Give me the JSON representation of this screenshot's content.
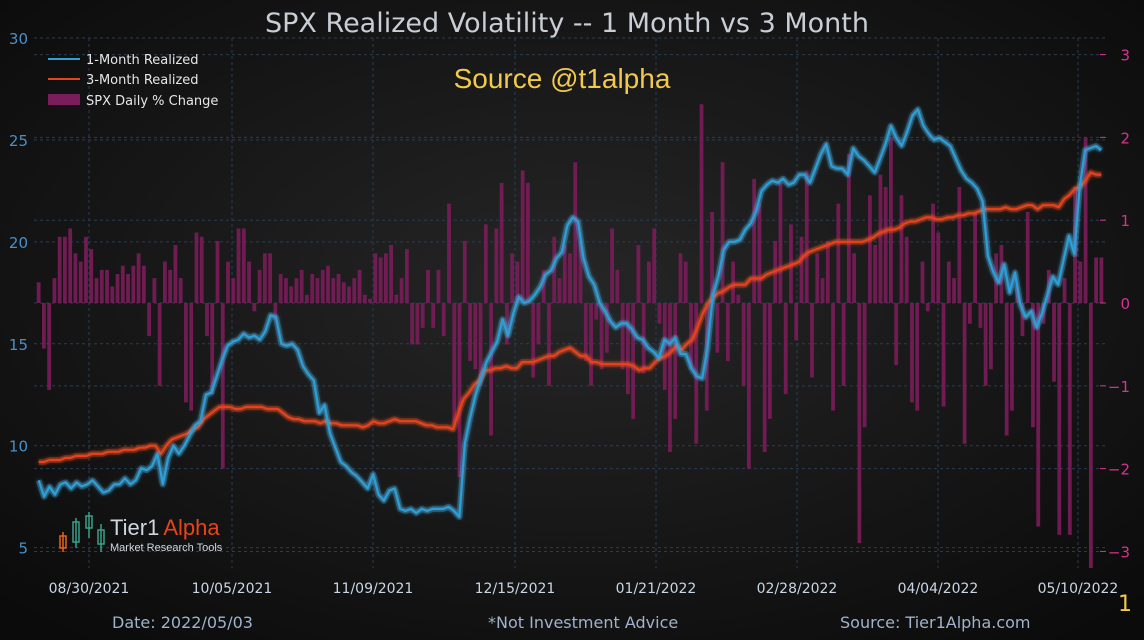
{
  "chart_data": {
    "type": "line+bar",
    "title": "SPX Realized Volatility -- 1 Month vs 3 Month",
    "watermark_source": "Source @t1alpha",
    "left_axis": {
      "ylim": [
        4,
        30
      ],
      "ticks": [
        5,
        10,
        15,
        20,
        25,
        30
      ]
    },
    "right_axis": {
      "ylim": [
        -3.2,
        3.2
      ],
      "ticks": [
        -3,
        -2,
        -1,
        0,
        1,
        2,
        3
      ]
    },
    "x_ticks": [
      "08/30/2021",
      "10/05/2021",
      "11/09/2021",
      "12/15/2021",
      "01/21/2022",
      "02/28/2022",
      "04/04/2022",
      "05/10/2022"
    ],
    "grid": true,
    "legend_position": "top-left",
    "colors": {
      "one_month": "#2f9fd6",
      "three_month": "#e8431b",
      "bars": "#7a1d5a",
      "title": "#c9ced6",
      "watermark": "#f2c94c",
      "left_ticks": "#4a90c8",
      "right_ticks": "#d6338f"
    },
    "series": [
      {
        "name": "1-Month Realized",
        "axis": "left",
        "values": [
          8.3,
          7.5,
          8.0,
          7.6,
          8.1,
          8.2,
          7.9,
          8.2,
          8.0,
          8.1,
          8.3,
          8.0,
          7.7,
          7.8,
          8.1,
          8.1,
          8.4,
          8.1,
          8.3,
          8.9,
          8.8,
          9.0,
          9.6,
          8.1,
          9.4,
          10.0,
          9.6,
          10.0,
          10.5,
          11.0,
          11.2,
          12.5,
          12.6,
          13.4,
          14.2,
          14.9,
          15.1,
          15.2,
          15.5,
          15.3,
          15.4,
          15.2,
          15.6,
          16.4,
          16.3,
          15.0,
          14.9,
          15.0,
          14.7,
          13.9,
          13.5,
          13.2,
          11.6,
          12.0,
          10.6,
          9.9,
          9.2,
          9.0,
          8.7,
          8.5,
          8.2,
          7.9,
          8.6,
          7.6,
          7.3,
          7.8,
          7.9,
          6.9,
          6.8,
          6.9,
          6.7,
          6.9,
          6.8,
          6.9,
          6.9,
          6.9,
          7.0,
          6.8,
          6.5,
          10.1,
          11.4,
          12.5,
          13.3,
          14.1,
          14.6,
          15.1,
          16.2,
          15.4,
          16.5,
          17.3,
          17.0,
          17.1,
          17.4,
          17.8,
          18.4,
          18.6,
          19.2,
          19.5,
          20.8,
          21.2,
          21.0,
          19.2,
          18.3,
          17.9,
          17.0,
          16.6,
          16.1,
          15.8,
          16.0,
          16.0,
          15.7,
          15.3,
          15.2,
          14.8,
          14.6,
          14.3,
          15.2,
          15.0,
          15.3,
          14.5,
          14.5,
          13.8,
          13.4,
          13.3,
          14.8,
          17.4,
          18.3,
          19.6,
          20.0,
          20.0,
          20.1,
          20.6,
          20.9,
          21.5,
          22.5,
          22.8,
          23.0,
          22.9,
          23.1,
          22.8,
          22.9,
          23.3,
          23.3,
          22.9,
          23.6,
          24.3,
          24.8,
          23.7,
          23.6,
          23.6,
          23.3,
          24.6,
          24.2,
          24.0,
          23.7,
          23.4,
          24.1,
          24.8,
          25.7,
          25.1,
          24.7,
          25.4,
          26.2,
          26.5,
          25.7,
          25.3,
          25.0,
          25.1,
          24.9,
          24.7,
          24.1,
          23.5,
          23.1,
          22.9,
          22.6,
          22.0,
          19.3,
          18.5,
          18.0,
          18.9,
          17.5,
          18.5,
          16.9,
          16.3,
          16.6,
          15.8,
          16.5,
          17.4,
          18.3,
          17.9,
          19.1,
          20.3,
          19.4,
          22.7,
          24.5,
          24.6,
          24.7,
          24.5
        ]
      },
      {
        "name": "3-Month Realized",
        "axis": "left",
        "values": [
          9.2,
          9.2,
          9.3,
          9.3,
          9.3,
          9.4,
          9.4,
          9.5,
          9.5,
          9.5,
          9.6,
          9.6,
          9.6,
          9.7,
          9.7,
          9.7,
          9.8,
          9.8,
          9.8,
          9.9,
          9.9,
          10.0,
          10.0,
          9.6,
          10.0,
          10.3,
          10.4,
          10.5,
          10.6,
          10.8,
          10.9,
          11.3,
          11.5,
          11.7,
          11.9,
          11.9,
          11.9,
          11.8,
          11.8,
          11.9,
          11.9,
          11.9,
          11.9,
          11.8,
          11.8,
          11.8,
          11.6,
          11.4,
          11.3,
          11.3,
          11.2,
          11.2,
          11.2,
          11.1,
          11.2,
          11.1,
          11.1,
          11.0,
          11.0,
          11.0,
          11.0,
          10.9,
          11.0,
          11.2,
          11.1,
          11.1,
          11.2,
          11.3,
          11.2,
          11.2,
          11.2,
          11.2,
          11.1,
          11.0,
          11.0,
          10.9,
          10.9,
          10.9,
          10.8,
          11.6,
          12.3,
          12.6,
          13.0,
          13.2,
          13.7,
          13.7,
          13.8,
          13.8,
          13.9,
          13.8,
          13.8,
          14.1,
          14.1,
          14.1,
          14.2,
          14.3,
          14.4,
          14.4,
          14.6,
          14.7,
          14.8,
          14.6,
          14.4,
          14.4,
          14.1,
          14.1,
          14.0,
          14.0,
          14.0,
          14.0,
          14.0,
          14.0,
          13.9,
          13.7,
          13.8,
          13.8,
          14.1,
          14.3,
          14.4,
          14.6,
          14.9,
          14.7,
          15.0,
          15.2,
          15.8,
          16.5,
          17.0,
          17.3,
          17.5,
          17.6,
          17.8,
          17.9,
          17.9,
          17.9,
          18.2,
          18.2,
          18.2,
          18.4,
          18.5,
          18.6,
          18.7,
          18.8,
          18.9,
          19.0,
          19.3,
          19.5,
          19.6,
          19.7,
          19.8,
          19.9,
          20.0,
          20.0,
          20.0,
          20.0,
          20.0,
          20.0,
          20.1,
          20.2,
          20.4,
          20.5,
          20.6,
          20.6,
          20.7,
          20.9,
          21.0,
          21.0,
          21.1,
          21.2,
          21.2,
          21.1,
          21.1,
          21.2,
          21.2,
          21.3,
          21.3,
          21.4,
          21.4,
          21.5,
          21.6,
          21.6,
          21.6,
          21.6,
          21.7,
          21.6,
          21.6,
          21.7,
          21.8,
          21.8,
          21.6,
          21.8,
          21.8,
          21.8,
          21.7,
          22.1,
          22.3,
          22.6,
          22.7,
          23.0,
          23.4,
          23.3,
          23.3
        ]
      },
      {
        "name": "SPX Daily % Change",
        "axis": "right",
        "type": "bar",
        "values": [
          0.25,
          -0.55,
          -1.05,
          0.3,
          0.8,
          0.8,
          0.9,
          0.6,
          0.5,
          0.8,
          0.65,
          0.3,
          0.4,
          0.4,
          0.2,
          0.35,
          0.45,
          0.35,
          0.45,
          0.6,
          0.45,
          -0.4,
          0.3,
          -1.0,
          0.5,
          0.4,
          0.7,
          0.3,
          -1.2,
          -1.3,
          0.85,
          0.8,
          -0.4,
          -1.1,
          0.75,
          -2.0,
          0.5,
          0.3,
          0.9,
          0.9,
          0.5,
          -0.1,
          0.4,
          0.6,
          0.6,
          -0.2,
          0.35,
          0.3,
          0.2,
          0.3,
          0.4,
          0.1,
          0.35,
          0.3,
          0.4,
          0.45,
          0.3,
          0.35,
          0.25,
          0.2,
          0.3,
          0.4,
          0.1,
          0.05,
          0.6,
          0.55,
          0.6,
          0.7,
          0.1,
          0.3,
          0.65,
          -0.5,
          -0.5,
          -0.3,
          0.4,
          -0.3,
          0.4,
          -0.4,
          1.2,
          -1.45,
          -2.1,
          0.75,
          -0.7,
          -0.8,
          -1.0,
          0.95,
          -1.6,
          0.9,
          1.45,
          -0.5,
          0.6,
          0.5,
          1.6,
          1.45,
          -0.9,
          -0.5,
          0.4,
          -1.0,
          0.8,
          0.3,
          0.7,
          0.6,
          1.7,
          0.75,
          -0.7,
          -1.0,
          -0.2,
          -0.8,
          -0.6,
          0.9,
          0.4,
          -0.8,
          -1.1,
          -1.4,
          0.7,
          -0.85,
          0.5,
          0.9,
          -0.25,
          -1.05,
          -1.8,
          -1.4,
          0.6,
          0.5,
          -0.8,
          -1.7,
          2.4,
          -1.3,
          1.1,
          -0.6,
          1.7,
          -0.7,
          0.5,
          0.1,
          -1.0,
          -2.0,
          1.5,
          1.2,
          -1.8,
          -1.4,
          0.75,
          1.45,
          -1.1,
          0.95,
          -0.45,
          0.8,
          1.6,
          -0.9,
          0.6,
          0.3,
          0.75,
          -1.3,
          1.2,
          -1.0,
          1.8,
          0.6,
          -2.9,
          -1.5,
          1.3,
          0.7,
          1.55,
          1.4,
          2.0,
          -0.75,
          1.3,
          0.8,
          -1.2,
          -1.3,
          0.5,
          -0.1,
          1.2,
          0.85,
          -1.25,
          0.5,
          0.3,
          1.4,
          -1.7,
          -0.25,
          1.1,
          -0.3,
          -1.0,
          -0.8,
          0.6,
          0.7,
          -1.6,
          -1.3,
          0.2,
          -0.4,
          1.1,
          -1.5,
          -2.7,
          -0.25,
          0.4,
          -0.95,
          -2.8,
          0.3,
          -2.8,
          1.4,
          0.5,
          2.0,
          -3.2,
          0.55,
          0.55
        ]
      }
    ]
  },
  "logo": {
    "name_part1": "Tier1",
    "name_part2": "Alpha",
    "tagline": "Market  Research Tools"
  },
  "footer": {
    "date": "Date: 2022/05/03",
    "disclaimer": "*Not Investment Advice",
    "source": "Source: Tier1Alpha.com",
    "page_number": "1"
  }
}
